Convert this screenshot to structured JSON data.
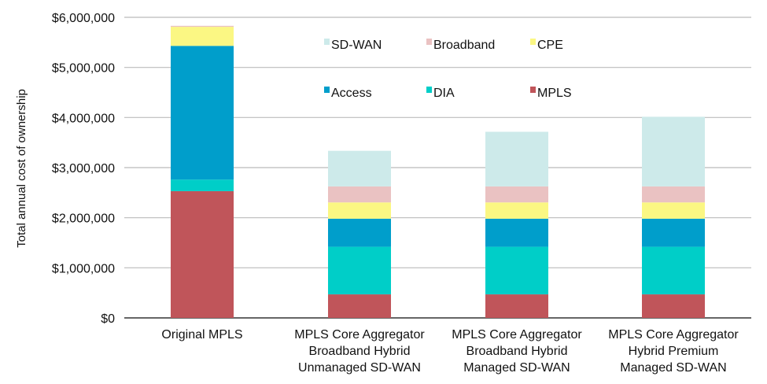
{
  "chart_data": {
    "type": "bar",
    "stacked": true,
    "title": "",
    "xlabel": "",
    "ylabel": "Total annual cost of ownership",
    "ylim": [
      0,
      6000000
    ],
    "yticks": [
      0,
      1000000,
      2000000,
      3000000,
      4000000,
      5000000,
      6000000
    ],
    "ytick_labels": [
      "$0",
      "$1,000,000",
      "$2,000,000",
      "$3,000,000",
      "$4,000,000",
      "$5,000,000",
      "$6,000,000"
    ],
    "grid": true,
    "legend_placement": "top-center",
    "categories": [
      [
        "Original MPLS"
      ],
      [
        "MPLS Core Aggregator",
        "Broadband Hybrid",
        "Unmanaged SD-WAN"
      ],
      [
        "MPLS Core Aggregator",
        "Broadband Hybrid",
        "Managed SD-WAN"
      ],
      [
        "MPLS Core Aggregator",
        "Hybrid Premium",
        "Managed SD-WAN"
      ]
    ],
    "series": [
      {
        "name": "MPLS",
        "color": "#c0555a",
        "values": [
          2530000,
          470000,
          470000,
          470000
        ]
      },
      {
        "name": "DIA",
        "color": "#00cec8",
        "values": [
          230000,
          950000,
          950000,
          950000
        ]
      },
      {
        "name": "Access",
        "color": "#009ecb",
        "values": [
          2670000,
          560000,
          560000,
          560000
        ]
      },
      {
        "name": "CPE",
        "color": "#fbf783",
        "values": [
          380000,
          325000,
          325000,
          325000
        ]
      },
      {
        "name": "Broadband",
        "color": "#eac2c2",
        "values": [
          20000,
          320000,
          320000,
          320000
        ]
      },
      {
        "name": "SD-WAN",
        "color": "#cdeaea",
        "values": [
          0,
          710000,
          1090000,
          1390000
        ]
      }
    ],
    "legend_order": [
      "SD-WAN",
      "Broadband",
      "CPE",
      "Access",
      "DIA",
      "MPLS"
    ]
  }
}
